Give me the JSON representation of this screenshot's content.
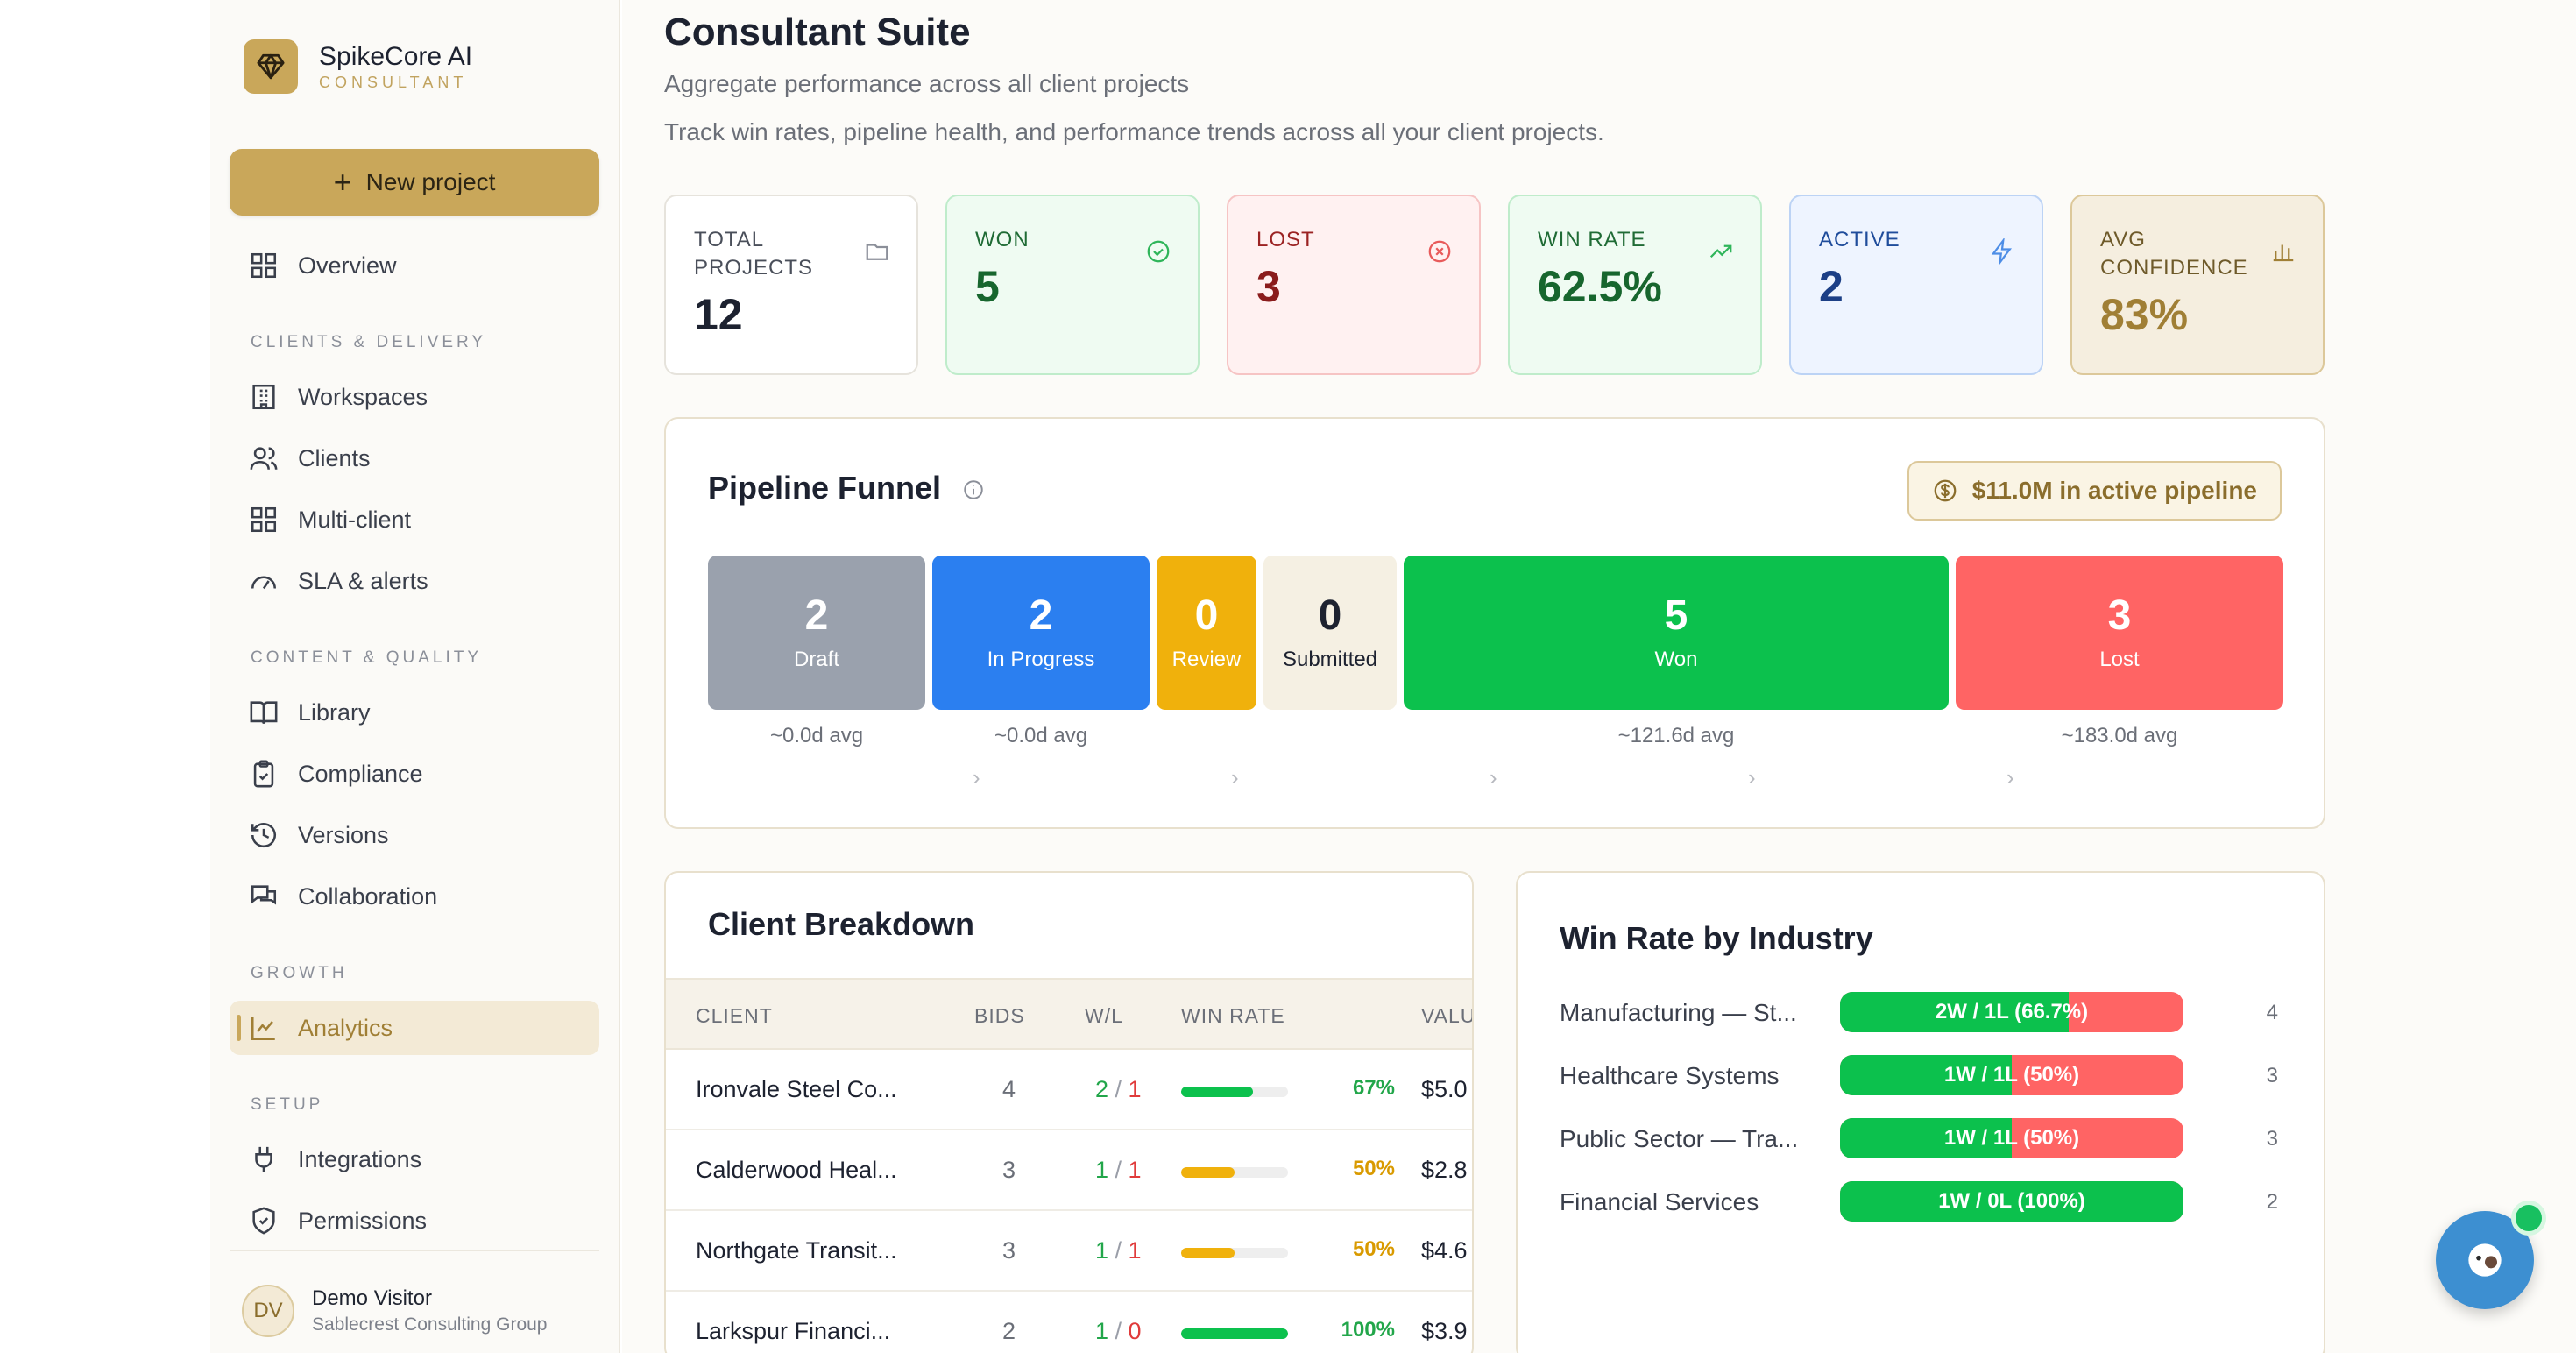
{
  "brand": {
    "name": "SpikeCore AI",
    "sub": "CONSULTANT"
  },
  "sidebar": {
    "new_project": "New project",
    "overview": "Overview",
    "sections": {
      "clients_delivery": "CLIENTS & DELIVERY",
      "content_quality": "CONTENT & QUALITY",
      "growth": "GROWTH",
      "setup": "SETUP"
    },
    "items": {
      "workspaces": "Workspaces",
      "clients": "Clients",
      "multi_client": "Multi-client",
      "sla": "SLA & alerts",
      "library": "Library",
      "compliance": "Compliance",
      "versions": "Versions",
      "collaboration": "Collaboration",
      "analytics": "Analytics",
      "integrations": "Integrations",
      "permissions": "Permissions"
    },
    "active": "analytics"
  },
  "user": {
    "initials": "DV",
    "name": "Demo Visitor",
    "org": "Sablecrest Consulting Group"
  },
  "page": {
    "title": "Consultant Suite",
    "subtitle": "Aggregate performance across all client projects",
    "description": "Track win rates, pipeline health, and performance trends across all your client projects."
  },
  "kpis": [
    {
      "label": "TOTAL PROJECTS",
      "value": "12",
      "icon": "folder-icon"
    },
    {
      "label": "WON",
      "value": "5",
      "icon": "check-circle-icon"
    },
    {
      "label": "LOST",
      "value": "3",
      "icon": "x-circle-icon"
    },
    {
      "label": "WIN RATE",
      "value": "62.5%",
      "icon": "trending-up-icon"
    },
    {
      "label": "ACTIVE",
      "value": "2",
      "icon": "zap-icon"
    },
    {
      "label": "AVG CONFIDENCE",
      "value": "83%",
      "icon": "bar-chart-icon"
    }
  ],
  "funnel": {
    "title": "Pipeline Funnel",
    "pipeline_badge": "$11.0M in active pipeline",
    "stages": [
      {
        "count": "2",
        "name": "Draft",
        "avg": "~0.0d avg",
        "color": "#9aa1ad"
      },
      {
        "count": "2",
        "name": "In Progress",
        "avg": "~0.0d avg",
        "color": "#2b7ff0"
      },
      {
        "count": "0",
        "name": "Review",
        "avg": "",
        "color": "#f0b10c"
      },
      {
        "count": "0",
        "name": "Submitted",
        "avg": "",
        "color": "#f5f0e3"
      },
      {
        "count": "5",
        "name": "Won",
        "avg": "~121.6d avg",
        "color": "#0cc14d"
      },
      {
        "count": "3",
        "name": "Lost",
        "avg": "~183.0d avg",
        "color": "#ff6464"
      }
    ]
  },
  "client_breakdown": {
    "title": "Client Breakdown",
    "columns": [
      "CLIENT",
      "BIDS",
      "W/L",
      "WIN RATE",
      "VALU"
    ],
    "rows": [
      {
        "client": "Ironvale Steel Co...",
        "bids": "4",
        "won": "2",
        "lost": "1",
        "win_rate": "67%",
        "win_rate_pct": 67,
        "value": "$5.0",
        "color": "#0cc14d",
        "text_color": "#22a64a"
      },
      {
        "client": "Calderwood Heal...",
        "bids": "3",
        "won": "1",
        "lost": "1",
        "win_rate": "50%",
        "win_rate_pct": 50,
        "value": "$2.8",
        "color": "#f0b10c",
        "text_color": "#d99a00"
      },
      {
        "client": "Northgate Transit...",
        "bids": "3",
        "won": "1",
        "lost": "1",
        "win_rate": "50%",
        "win_rate_pct": 50,
        "value": "$4.6",
        "color": "#f0b10c",
        "text_color": "#d99a00"
      },
      {
        "client": "Larkspur Financi...",
        "bids": "2",
        "won": "1",
        "lost": "0",
        "win_rate": "100%",
        "win_rate_pct": 100,
        "value": "$3.9",
        "color": "#0cc14d",
        "text_color": "#22a64a"
      }
    ]
  },
  "win_rate_by_industry": {
    "title": "Win Rate by Industry",
    "rows": [
      {
        "industry": "Manufacturing — St...",
        "label": "2W / 1L (66.7%)",
        "win_fraction": 0.667,
        "count": "4"
      },
      {
        "industry": "Healthcare Systems",
        "label": "1W / 1L (50%)",
        "win_fraction": 0.5,
        "count": "3"
      },
      {
        "industry": "Public Sector — Tra...",
        "label": "1W / 1L (50%)",
        "win_fraction": 0.5,
        "count": "3"
      },
      {
        "industry": "Financial Services",
        "label": "1W / 0L (100%)",
        "win_fraction": 1.0,
        "count": "2"
      }
    ]
  }
}
